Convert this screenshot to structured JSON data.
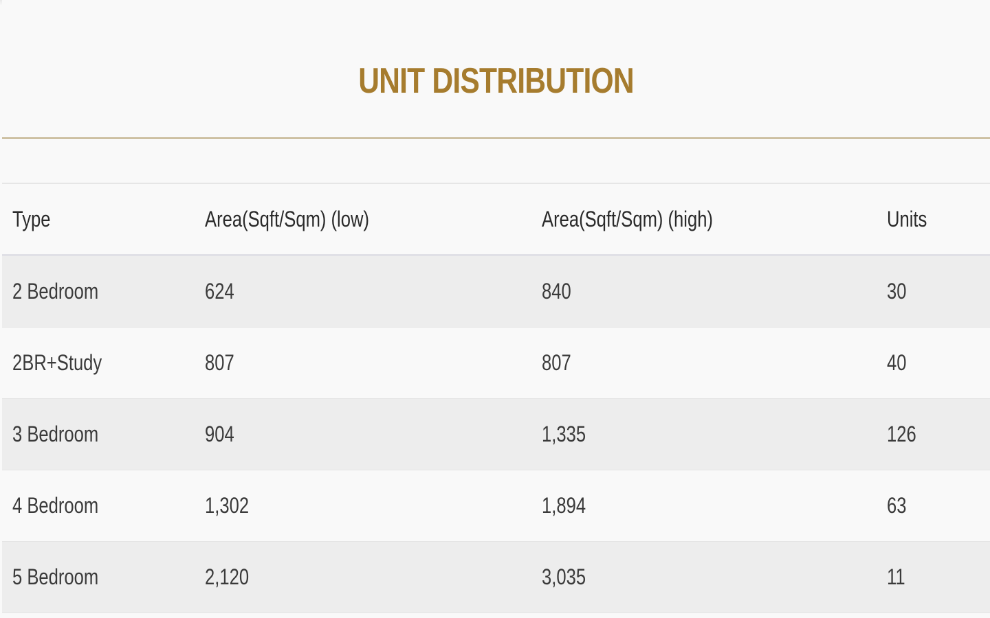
{
  "section": {
    "title": "UNIT DISTRIBUTION"
  },
  "table": {
    "headers": {
      "type": "Type",
      "area_low": "Area(Sqft/Sqm) (low)",
      "area_high": "Area(Sqft/Sqm) (high)",
      "units": "Units"
    },
    "rows": [
      {
        "type": "2 Bedroom",
        "area_low": "624",
        "area_high": "840",
        "units": "30"
      },
      {
        "type": "2BR+Study",
        "area_low": "807",
        "area_high": "807",
        "units": "40"
      },
      {
        "type": "3 Bedroom",
        "area_low": "904",
        "area_high": "1,335",
        "units": "126"
      },
      {
        "type": "4 Bedroom",
        "area_low": "1,302",
        "area_high": "1,894",
        "units": "63"
      },
      {
        "type": "5 Bedroom",
        "area_low": "2,120",
        "area_high": "3,035",
        "units": "11"
      }
    ]
  },
  "colors": {
    "title": "#a67c2e",
    "divider": "#c2b28c",
    "row_shaded": "#ededed",
    "row_plain": "#f9f9f9"
  }
}
